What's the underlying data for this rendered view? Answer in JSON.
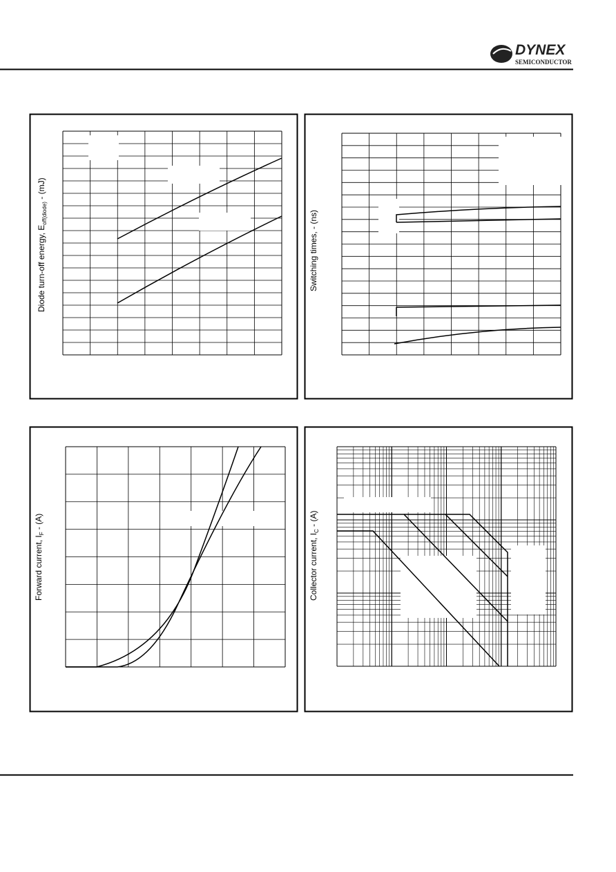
{
  "header": {
    "logo": "DYNEX",
    "logo_subtitle": "SEMICONDUCTOR"
  },
  "panels": [
    {
      "ylabel": {
        "main": "Diode turn-off energy, E",
        "sub": "off(diode)",
        "unit": " - (mJ)"
      }
    },
    {
      "ylabel": {
        "main": "Switching times, - (ns)"
      }
    },
    {
      "ylabel": {
        "main": "Forward current, I",
        "sub": "F",
        "unit": " - (A)"
      }
    },
    {
      "ylabel": {
        "main": "Collector current, I",
        "sub": "C",
        "unit": " - (A)"
      }
    }
  ]
}
